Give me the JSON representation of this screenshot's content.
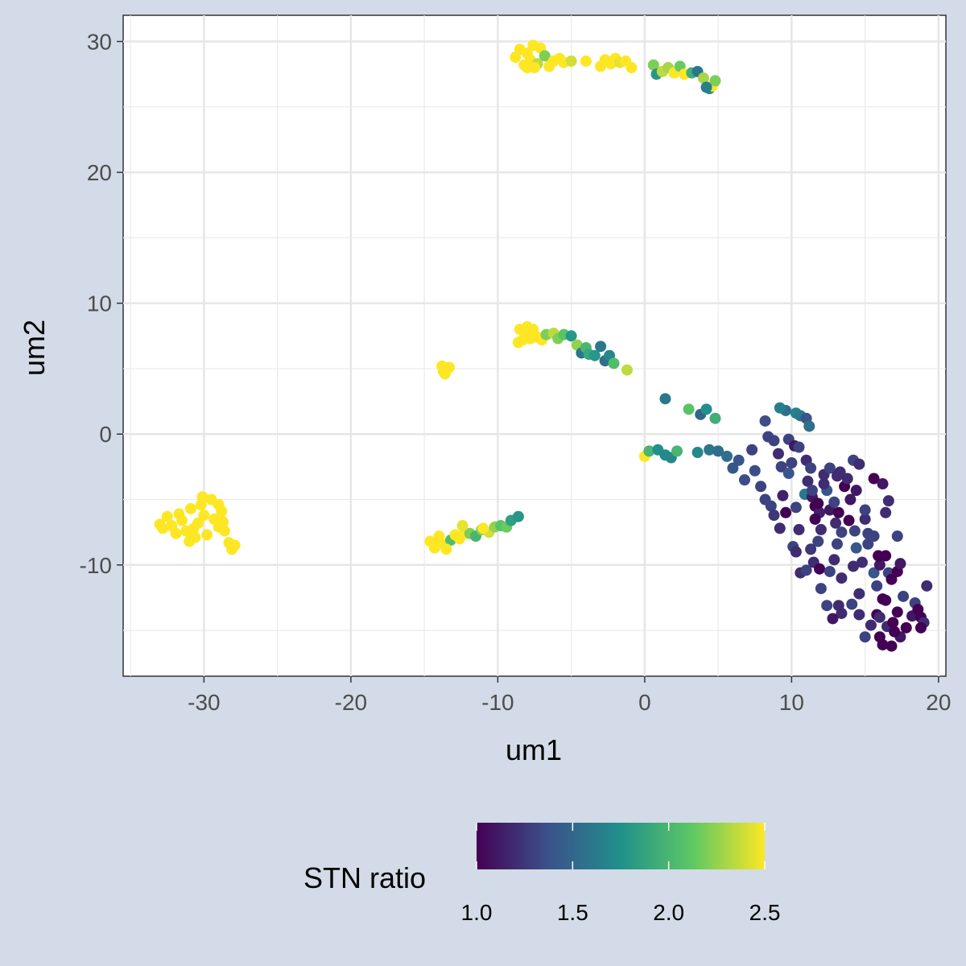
{
  "chart_data": {
    "type": "scatter",
    "title": "",
    "xlabel": "um1",
    "ylabel": "um2",
    "xlim": [
      -35.5,
      20.5
    ],
    "ylim": [
      -18.5,
      32
    ],
    "x_ticks": [
      -30,
      -20,
      -10,
      0,
      10,
      20
    ],
    "x_tick_labels": [
      "-30",
      "-20",
      "-10",
      "0",
      "10",
      "20"
    ],
    "y_ticks": [
      -10,
      0,
      10,
      20,
      30
    ],
    "y_tick_labels": [
      "-10",
      "0",
      "10",
      "20",
      "30"
    ],
    "grid": true,
    "color_scale": {
      "name": "STN ratio",
      "palette": "viridis",
      "min": 1.0,
      "max": 2.5,
      "ticks": [
        1.0,
        1.5,
        2.0,
        2.5
      ],
      "tick_labels": [
        "1.0",
        "1.5",
        "2.0",
        "2.5"
      ],
      "colors": [
        "#440154",
        "#3b528b",
        "#21908c",
        "#5dc863",
        "#fde725"
      ],
      "legend_position": "bottom"
    },
    "points": [
      [
        -32.5,
        -6.3,
        2.5
      ],
      [
        -32.2,
        -7.0,
        2.5
      ],
      [
        -31.9,
        -7.6,
        2.5
      ],
      [
        -31.5,
        -6.6,
        2.5
      ],
      [
        -31.2,
        -7.4,
        2.5
      ],
      [
        -30.9,
        -5.7,
        2.5
      ],
      [
        -30.7,
        -7.2,
        2.5
      ],
      [
        -30.4,
        -6.8,
        2.5
      ],
      [
        -30.2,
        -5.4,
        2.5
      ],
      [
        -30.0,
        -6.2,
        2.5
      ],
      [
        -29.8,
        -7.7,
        2.5
      ],
      [
        -29.5,
        -5.0,
        2.5
      ],
      [
        -29.3,
        -6.5,
        2.5
      ],
      [
        -29.0,
        -7.1,
        2.5
      ],
      [
        -28.8,
        -5.9,
        2.5
      ],
      [
        -28.6,
        -7.4,
        2.5
      ],
      [
        -28.3,
        -8.3,
        2.5
      ],
      [
        -28.1,
        -8.8,
        2.5
      ],
      [
        -27.9,
        -8.5,
        2.5
      ],
      [
        -32.8,
        -7.2,
        2.5
      ],
      [
        -31.0,
        -8.2,
        2.5
      ],
      [
        -30.1,
        -4.8,
        2.5
      ],
      [
        -31.7,
        -6.1,
        2.5
      ],
      [
        -29.0,
        -5.4,
        2.5
      ],
      [
        -33.0,
        -6.9,
        2.5
      ],
      [
        -28.7,
        -6.7,
        2.5
      ],
      [
        -30.6,
        -7.9,
        2.5
      ],
      [
        -14.6,
        -8.2,
        2.5
      ],
      [
        -14.3,
        -8.7,
        2.5
      ],
      [
        -14.0,
        -8.0,
        2.5
      ],
      [
        -13.6,
        -8.5,
        2.5
      ],
      [
        -13.2,
        -8.1,
        2.05
      ],
      [
        -12.9,
        -7.7,
        2.5
      ],
      [
        -12.6,
        -8.0,
        2.5
      ],
      [
        -12.3,
        -7.6,
        2.5
      ],
      [
        -11.9,
        -7.6,
        2.2
      ],
      [
        -11.5,
        -7.8,
        2.0
      ],
      [
        -11.1,
        -7.3,
        2.2
      ],
      [
        -10.6,
        -7.5,
        2.4
      ],
      [
        -10.2,
        -7.1,
        2.25
      ],
      [
        -9.8,
        -7.0,
        2.1
      ],
      [
        -9.4,
        -7.1,
        2.15
      ],
      [
        -9.1,
        -6.6,
        1.85
      ],
      [
        -8.6,
        -6.3,
        1.8
      ],
      [
        -13.5,
        -8.8,
        2.5
      ],
      [
        -12.4,
        -7.0,
        2.45
      ],
      [
        -14.0,
        -7.8,
        2.5
      ],
      [
        -11.0,
        -7.2,
        2.5
      ],
      [
        -13.8,
        5.2,
        2.5
      ],
      [
        -13.6,
        4.6,
        2.5
      ],
      [
        -13.4,
        5.0,
        2.5
      ],
      [
        -13.7,
        4.8,
        2.5
      ],
      [
        -13.3,
        5.1,
        2.5
      ],
      [
        -8.5,
        8.0,
        2.5
      ],
      [
        -8.3,
        7.2,
        2.5
      ],
      [
        -8.0,
        7.7,
        2.5
      ],
      [
        -7.8,
        7.3,
        2.5
      ],
      [
        -7.6,
        8.0,
        2.5
      ],
      [
        -7.3,
        7.4,
        2.5
      ],
      [
        -7.0,
        7.2,
        2.5
      ],
      [
        -6.7,
        7.6,
        2.2
      ],
      [
        -6.2,
        7.7,
        2.35
      ],
      [
        -5.9,
        7.3,
        2.2
      ],
      [
        -5.5,
        7.6,
        2.1
      ],
      [
        -5.0,
        7.5,
        1.8
      ],
      [
        -4.6,
        6.8,
        2.25
      ],
      [
        -4.3,
        6.2,
        1.6
      ],
      [
        -4.0,
        6.6,
        2.0
      ],
      [
        -3.8,
        6.1,
        1.9
      ],
      [
        -3.4,
        6.0,
        1.8
      ],
      [
        -3.0,
        6.7,
        1.6
      ],
      [
        -2.7,
        5.6,
        1.55
      ],
      [
        -2.4,
        6.0,
        1.7
      ],
      [
        -2.1,
        5.4,
        2.05
      ],
      [
        -1.2,
        4.9,
        2.35
      ],
      [
        -8.6,
        7.0,
        2.5
      ],
      [
        -8.0,
        8.2,
        2.5
      ],
      [
        -8.8,
        28.8,
        2.5
      ],
      [
        -8.5,
        29.4,
        2.5
      ],
      [
        -8.2,
        28.2,
        2.5
      ],
      [
        -8.0,
        29.1,
        2.5
      ],
      [
        -7.8,
        28.6,
        2.5
      ],
      [
        -7.6,
        29.7,
        2.5
      ],
      [
        -7.3,
        28.3,
        2.35
      ],
      [
        -7.1,
        29.5,
        2.5
      ],
      [
        -6.8,
        28.9,
        2.2
      ],
      [
        -6.5,
        28.1,
        2.5
      ],
      [
        -6.2,
        28.5,
        2.5
      ],
      [
        -5.8,
        28.7,
        2.5
      ],
      [
        -5.5,
        28.4,
        2.5
      ],
      [
        -5.0,
        28.5,
        2.4
      ],
      [
        -4.0,
        28.5,
        2.5
      ],
      [
        -3.0,
        28.1,
        2.5
      ],
      [
        -2.7,
        28.6,
        2.5
      ],
      [
        -2.3,
        28.3,
        2.5
      ],
      [
        -2.0,
        28.7,
        2.5
      ],
      [
        -1.7,
        28.4,
        2.45
      ],
      [
        -1.3,
        28.5,
        2.5
      ],
      [
        -0.9,
        28.0,
        2.5
      ],
      [
        -7.5,
        28.0,
        2.5
      ],
      [
        -8.0,
        28.0,
        2.5
      ],
      [
        0.6,
        28.2,
        2.2
      ],
      [
        0.8,
        27.5,
        1.8
      ],
      [
        1.2,
        27.7,
        2.35
      ],
      [
        1.6,
        28.0,
        2.3
      ],
      [
        2.0,
        27.6,
        2.5
      ],
      [
        2.4,
        28.1,
        2.15
      ],
      [
        2.7,
        27.5,
        2.5
      ],
      [
        3.2,
        27.6,
        1.95
      ],
      [
        3.6,
        27.7,
        1.6
      ],
      [
        4.0,
        27.2,
        2.3
      ],
      [
        4.4,
        26.4,
        1.7
      ],
      [
        4.6,
        26.6,
        2.5
      ],
      [
        4.8,
        27.0,
        2.2
      ],
      [
        4.2,
        26.5,
        1.65
      ],
      [
        1.4,
        2.7,
        1.6
      ],
      [
        3.0,
        1.9,
        2.1
      ],
      [
        3.8,
        1.5,
        1.5
      ],
      [
        4.2,
        1.9,
        1.75
      ],
      [
        4.8,
        1.2,
        1.95
      ],
      [
        0.0,
        -1.7,
        2.5
      ],
      [
        0.3,
        -1.3,
        2.0
      ],
      [
        0.9,
        -1.2,
        1.75
      ],
      [
        1.4,
        -1.6,
        1.7
      ],
      [
        1.8,
        -1.8,
        1.7
      ],
      [
        2.2,
        -1.3,
        2.0
      ],
      [
        3.6,
        -1.4,
        1.7
      ],
      [
        4.4,
        -1.2,
        1.6
      ],
      [
        5.0,
        -1.3,
        1.55
      ],
      [
        5.6,
        -1.7,
        1.55
      ],
      [
        6.0,
        -2.6,
        1.4
      ],
      [
        6.4,
        -2.0,
        1.4
      ],
      [
        6.8,
        -3.5,
        1.35
      ],
      [
        7.3,
        -1.2,
        1.3
      ],
      [
        7.5,
        -2.8,
        1.35
      ],
      [
        7.9,
        -4.0,
        1.3
      ],
      [
        8.2,
        -5.0,
        1.3
      ],
      [
        8.6,
        -5.5,
        1.3
      ],
      [
        8.8,
        -6.2,
        1.25
      ],
      [
        8.4,
        -0.2,
        1.3
      ],
      [
        8.2,
        1.0,
        1.35
      ],
      [
        8.8,
        -0.5,
        1.3
      ],
      [
        9.1,
        -1.5,
        1.2
      ],
      [
        9.3,
        -2.5,
        1.3
      ],
      [
        9.6,
        -6.0,
        1.0
      ],
      [
        9.8,
        -0.4,
        1.3
      ],
      [
        9.6,
        1.8,
        1.55
      ],
      [
        10.0,
        -2.2,
        1.3
      ],
      [
        9.8,
        -3.0,
        1.4
      ],
      [
        9.2,
        2.0,
        1.65
      ],
      [
        10.3,
        1.6,
        1.65
      ],
      [
        10.2,
        -0.9,
        1.1
      ],
      [
        10.6,
        1.4,
        1.6
      ],
      [
        11.0,
        1.2,
        1.4
      ],
      [
        11.2,
        0.6,
        1.55
      ],
      [
        10.5,
        -1.0,
        1.3
      ],
      [
        11.0,
        -2.0,
        1.2
      ],
      [
        11.3,
        -2.6,
        1.3
      ],
      [
        10.9,
        -4.6,
        1.6
      ],
      [
        10.3,
        -5.6,
        1.3
      ],
      [
        10.5,
        -7.3,
        1.2
      ],
      [
        10.1,
        -8.6,
        1.3
      ],
      [
        10.6,
        -10.6,
        1.2
      ],
      [
        10.3,
        -9.0,
        1.2
      ],
      [
        11.0,
        -10.4,
        1.3
      ],
      [
        11.4,
        -4.8,
        1.1
      ],
      [
        11.6,
        -5.5,
        1.0
      ],
      [
        11.9,
        -6.0,
        1.15
      ],
      [
        11.6,
        -6.5,
        1.0
      ],
      [
        12.0,
        -7.3,
        1.2
      ],
      [
        11.8,
        -8.2,
        1.3
      ],
      [
        11.3,
        -8.8,
        1.25
      ],
      [
        11.5,
        -9.8,
        1.2
      ],
      [
        11.9,
        -10.3,
        1.0
      ],
      [
        12.4,
        -4.3,
        1.4
      ],
      [
        12.6,
        -5.8,
        1.1
      ],
      [
        12.2,
        -3.8,
        1.2
      ],
      [
        12.9,
        -5.2,
        1.3
      ],
      [
        13.0,
        -6.8,
        1.2
      ],
      [
        13.4,
        -7.5,
        1.3
      ],
      [
        13.1,
        -8.4,
        1.3
      ],
      [
        12.9,
        -9.6,
        1.2
      ],
      [
        13.4,
        -11.0,
        1.2
      ],
      [
        12.6,
        -10.5,
        1.3
      ],
      [
        13.2,
        -6.0,
        1.0
      ],
      [
        13.6,
        -4.0,
        1.0
      ],
      [
        14.0,
        -5.0,
        1.1
      ],
      [
        13.8,
        -3.4,
        1.2
      ],
      [
        14.2,
        -2.0,
        1.3
      ],
      [
        14.6,
        -2.3,
        1.2
      ],
      [
        14.4,
        -4.3,
        1.1
      ],
      [
        13.9,
        -6.6,
        1.0
      ],
      [
        14.3,
        -7.4,
        1.3
      ],
      [
        14.4,
        -8.7,
        1.4
      ],
      [
        14.8,
        -9.8,
        1.2
      ],
      [
        14.2,
        -10.1,
        1.2
      ],
      [
        15.2,
        -8.4,
        1.3
      ],
      [
        15.6,
        -7.8,
        1.3
      ],
      [
        15.0,
        -6.5,
        1.2
      ],
      [
        15.0,
        -5.8,
        1.3
      ],
      [
        15.6,
        -10.6,
        1.4
      ],
      [
        15.8,
        -11.6,
        1.3
      ],
      [
        14.6,
        -12.2,
        1.2
      ],
      [
        14.1,
        -13.0,
        1.3
      ],
      [
        13.4,
        -13.7,
        1.2
      ],
      [
        12.8,
        -14.1,
        1.1
      ],
      [
        12.4,
        -13.1,
        1.3
      ],
      [
        13.2,
        -13.1,
        1.2
      ],
      [
        14.6,
        -13.8,
        1.2
      ],
      [
        15.0,
        -15.5,
        1.3
      ],
      [
        15.4,
        -14.6,
        1.2
      ],
      [
        15.8,
        -13.8,
        1.0
      ],
      [
        16.0,
        -15.5,
        1.0
      ],
      [
        16.2,
        -16.1,
        1.0
      ],
      [
        16.5,
        -14.7,
        1.2
      ],
      [
        16.4,
        -12.7,
        1.0
      ],
      [
        16.6,
        -10.6,
        1.3
      ],
      [
        16.0,
        -10.0,
        1.1
      ],
      [
        16.4,
        -9.3,
        1.0
      ],
      [
        16.8,
        -11.1,
        1.0
      ],
      [
        17.2,
        -10.5,
        1.0
      ],
      [
        17.4,
        -9.9,
        1.1
      ],
      [
        17.6,
        -12.4,
        1.3
      ],
      [
        17.2,
        -13.6,
        1.0
      ],
      [
        16.9,
        -14.4,
        1.0
      ],
      [
        17.4,
        -15.5,
        1.1
      ],
      [
        17.8,
        -14.8,
        1.0
      ],
      [
        18.2,
        -13.9,
        1.1
      ],
      [
        18.4,
        -12.9,
        1.3
      ],
      [
        18.6,
        -13.4,
        1.0
      ],
      [
        18.8,
        -14.0,
        1.0
      ],
      [
        19.2,
        -11.6,
        1.2
      ],
      [
        19.0,
        -14.4,
        1.2
      ],
      [
        18.8,
        -14.8,
        1.0
      ],
      [
        16.8,
        -16.2,
        1.0
      ],
      [
        16.2,
        -12.6,
        1.0
      ],
      [
        15.9,
        -9.3,
        1.0
      ],
      [
        15.6,
        -3.4,
        1.0
      ],
      [
        15.2,
        -7.6,
        1.3
      ],
      [
        16.2,
        -3.8,
        1.1
      ],
      [
        16.6,
        -5.1,
        1.2
      ],
      [
        17.2,
        -7.8,
        1.3
      ],
      [
        16.4,
        -6.0,
        1.2
      ],
      [
        11.1,
        -3.6,
        1.2
      ],
      [
        11.4,
        -4.3,
        1.3
      ],
      [
        12.2,
        -3.1,
        1.2
      ],
      [
        12.6,
        -2.6,
        1.3
      ],
      [
        13.1,
        -3.2,
        1.2
      ],
      [
        13.3,
        -2.9,
        1.2
      ],
      [
        11.8,
        -5.3,
        1.0
      ],
      [
        9.4,
        -4.7,
        1.15
      ],
      [
        9.2,
        -7.2,
        1.2
      ],
      [
        12.0,
        -11.8,
        1.3
      ],
      [
        16.0,
        -14.0,
        1.2
      ],
      [
        17.0,
        -15.1,
        1.0
      ]
    ]
  }
}
